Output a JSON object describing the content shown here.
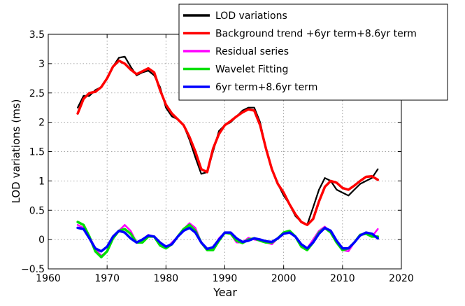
{
  "chart_data": {
    "type": "line",
    "xlabel": "Year",
    "ylabel": "LOD variations (ms)",
    "xlim": [
      1960,
      2020
    ],
    "ylim": [
      -0.5,
      3.5
    ],
    "xticks": [
      1960,
      1970,
      1980,
      1990,
      2000,
      2010,
      2020
    ],
    "yticks": [
      -0.5,
      0,
      0.5,
      1,
      1.5,
      2,
      2.5,
      3,
      3.5
    ],
    "ytick_labels": [
      "−0.5",
      "0",
      "0.5",
      "1",
      "1.5",
      "2",
      "2.5",
      "3",
      "3.5"
    ],
    "grid": true,
    "legend_position": "top-right",
    "series": [
      {
        "name": "LOD variations",
        "color": "#000000",
        "x": [
          1965,
          1966,
          1967,
          1968,
          1969,
          1970,
          1971,
          1972,
          1973,
          1974,
          1975,
          1976,
          1977,
          1978,
          1979,
          1980,
          1981,
          1982,
          1983,
          1984,
          1985,
          1986,
          1987,
          1988,
          1989,
          1990,
          1991,
          1992,
          1993,
          1994,
          1995,
          1996,
          1997,
          1998,
          1999,
          2000,
          2001,
          2002,
          2003,
          2004,
          2005,
          2006,
          2007,
          2008,
          2009,
          2010,
          2011,
          2012,
          2013,
          2014,
          2015,
          2016
        ],
        "values": [
          2.25,
          2.45,
          2.45,
          2.55,
          2.6,
          2.75,
          2.95,
          3.1,
          3.12,
          2.95,
          2.8,
          2.85,
          2.88,
          2.8,
          2.6,
          2.25,
          2.1,
          2.05,
          1.95,
          1.7,
          1.4,
          1.12,
          1.15,
          1.5,
          1.85,
          1.95,
          2.0,
          2.1,
          2.2,
          2.25,
          2.25,
          2.0,
          1.55,
          1.2,
          0.95,
          0.75,
          0.6,
          0.4,
          0.3,
          0.25,
          0.55,
          0.85,
          1.05,
          1.0,
          0.85,
          0.8,
          0.75,
          0.85,
          0.95,
          1.0,
          1.05,
          1.2
        ]
      },
      {
        "name": "Background trend +6yr term+8.6yr term",
        "color": "#ff0000",
        "x": [
          1965,
          1966,
          1967,
          1968,
          1969,
          1970,
          1971,
          1972,
          1973,
          1974,
          1975,
          1976,
          1977,
          1978,
          1979,
          1980,
          1981,
          1982,
          1983,
          1984,
          1985,
          1986,
          1987,
          1988,
          1989,
          1990,
          1991,
          1992,
          1993,
          1994,
          1995,
          1996,
          1997,
          1998,
          1999,
          2000,
          2001,
          2002,
          2003,
          2004,
          2005,
          2006,
          2007,
          2008,
          2009,
          2010,
          2011,
          2012,
          2013,
          2014,
          2015,
          2016
        ],
        "values": [
          2.15,
          2.4,
          2.5,
          2.52,
          2.6,
          2.75,
          2.95,
          3.05,
          3.0,
          2.9,
          2.82,
          2.87,
          2.92,
          2.85,
          2.55,
          2.3,
          2.15,
          2.05,
          1.95,
          1.75,
          1.5,
          1.2,
          1.15,
          1.55,
          1.8,
          1.95,
          2.02,
          2.1,
          2.17,
          2.22,
          2.2,
          1.95,
          1.55,
          1.2,
          0.95,
          0.8,
          0.6,
          0.43,
          0.3,
          0.25,
          0.35,
          0.65,
          0.9,
          1.0,
          0.97,
          0.88,
          0.85,
          0.92,
          1.0,
          1.07,
          1.08,
          1.02
        ]
      },
      {
        "name": "Residual series",
        "color": "#ff00ff",
        "x": [
          1965,
          1966,
          1967,
          1968,
          1969,
          1970,
          1971,
          1972,
          1973,
          1974,
          1975,
          1976,
          1977,
          1978,
          1979,
          1980,
          1981,
          1982,
          1983,
          1984,
          1985,
          1986,
          1987,
          1988,
          1989,
          1990,
          1991,
          1992,
          1993,
          1994,
          1995,
          1996,
          1997,
          1998,
          1999,
          2000,
          2001,
          2002,
          2003,
          2004,
          2005,
          2006,
          2007,
          2008,
          2009,
          2010,
          2011,
          2012,
          2013,
          2014,
          2015,
          2016
        ],
        "values": [
          0.25,
          0.2,
          0.05,
          -0.15,
          -0.28,
          -0.2,
          0.05,
          0.15,
          0.25,
          0.15,
          -0.05,
          -0.05,
          0.08,
          0.05,
          -0.1,
          -0.15,
          -0.05,
          0.05,
          0.18,
          0.28,
          0.2,
          -0.05,
          -0.18,
          -0.15,
          0.02,
          0.12,
          0.1,
          -0.05,
          -0.05,
          0.03,
          0.0,
          -0.02,
          -0.05,
          -0.08,
          0.02,
          0.12,
          0.15,
          0.05,
          -0.12,
          -0.15,
          0.0,
          0.15,
          0.22,
          0.12,
          -0.05,
          -0.18,
          -0.2,
          -0.05,
          0.08,
          0.1,
          0.05,
          0.18
        ]
      },
      {
        "name": "Wavelet Fitting",
        "color": "#00e000",
        "x": [
          1965,
          1966,
          1967,
          1968,
          1969,
          1970,
          1971,
          1972,
          1973,
          1974,
          1975,
          1976,
          1977,
          1978,
          1979,
          1980,
          1981,
          1982,
          1983,
          1984,
          1985,
          1986,
          1987,
          1988,
          1989,
          1990,
          1991,
          1992,
          1993,
          1994,
          1995,
          1996,
          1997,
          1998,
          1999,
          2000,
          2001,
          2002,
          2003,
          2004,
          2005,
          2006,
          2007,
          2008,
          2009,
          2010,
          2011,
          2012,
          2013,
          2014,
          2015,
          2016
        ],
        "values": [
          0.3,
          0.25,
          0.05,
          -0.2,
          -0.3,
          -0.2,
          0.02,
          0.15,
          0.18,
          0.1,
          -0.05,
          -0.05,
          0.05,
          0.05,
          -0.1,
          -0.15,
          -0.08,
          0.05,
          0.18,
          0.25,
          0.15,
          -0.05,
          -0.18,
          -0.18,
          -0.02,
          0.12,
          0.1,
          -0.02,
          -0.06,
          0.0,
          0.02,
          -0.02,
          -0.05,
          -0.05,
          0.02,
          0.12,
          0.15,
          0.05,
          -0.12,
          -0.18,
          -0.05,
          0.12,
          0.2,
          0.12,
          -0.05,
          -0.18,
          -0.15,
          -0.05,
          0.08,
          0.1,
          0.05,
          0.05
        ]
      },
      {
        "name": "6yr term+8.6yr term",
        "color": "#0000ff",
        "x": [
          1965,
          1966,
          1967,
          1968,
          1969,
          1970,
          1971,
          1972,
          1973,
          1974,
          1975,
          1976,
          1977,
          1978,
          1979,
          1980,
          1981,
          1982,
          1983,
          1984,
          1985,
          1986,
          1987,
          1988,
          1989,
          1990,
          1991,
          1992,
          1993,
          1994,
          1995,
          1996,
          1997,
          1998,
          1999,
          2000,
          2001,
          2002,
          2003,
          2004,
          2005,
          2006,
          2007,
          2008,
          2009,
          2010,
          2011,
          2012,
          2013,
          2014,
          2015,
          2016
        ],
        "values": [
          0.2,
          0.18,
          0.02,
          -0.15,
          -0.2,
          -0.12,
          0.05,
          0.15,
          0.12,
          0.02,
          -0.05,
          0.0,
          0.07,
          0.05,
          -0.05,
          -0.12,
          -0.08,
          0.05,
          0.15,
          0.2,
          0.12,
          -0.05,
          -0.16,
          -0.13,
          0.0,
          0.12,
          0.12,
          0.02,
          -0.04,
          -0.02,
          0.02,
          0.0,
          -0.03,
          -0.04,
          0.02,
          0.1,
          0.12,
          0.05,
          -0.08,
          -0.15,
          -0.05,
          0.1,
          0.2,
          0.15,
          -0.02,
          -0.15,
          -0.15,
          -0.05,
          0.07,
          0.12,
          0.1,
          0.02
        ]
      }
    ]
  }
}
